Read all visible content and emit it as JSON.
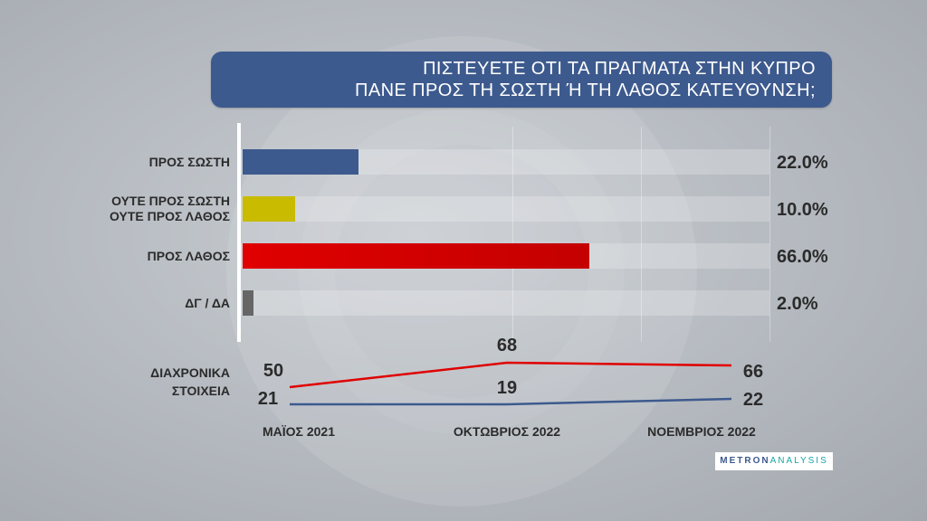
{
  "title": {
    "line1": "ΠΙΣΤΕΥΕΤΕ ΟΤΙ ΤΑ ΠΡΑΓΜΑΤΑ ΣΤΗΝ ΚΥΠΡΟ",
    "line2": "ΠΑΝΕ ΠΡΟΣ ΤΗ ΣΩΣΤΗ Ή ΤΗ ΛΑΘΟΣ ΚΑΤΕΥΘΥΝΣΗ;"
  },
  "colors": {
    "title_bg": "#3d5a8e",
    "right": "#3d5a8e",
    "neither": "#c8bb00",
    "wrong": "#e00000",
    "dk": "#666666"
  },
  "chart_data": [
    {
      "type": "bar",
      "orientation": "horizontal",
      "title": "ΠΙΣΤΕΥΕΤΕ ΟΤΙ ΤΑ ΠΡΑΓΜΑΤΑ ΣΤΗΝ ΚΥΠΡΟ ΠΑΝΕ ΠΡΟΣ ΤΗ ΣΩΣΤΗ Ή ΤΗ ΛΑΘΟΣ ΚΑΤΕΥΘΥΝΣΗ;",
      "categories": [
        {
          "line1": "ΠΡΟΣ ΣΩΣΤΗ",
          "line2": ""
        },
        {
          "line1": "ΟΥΤΕ ΠΡΟΣ ΣΩΣΤΗ",
          "line2": "ΟΥΤΕ ΠΡΟΣ ΛΑΘΟΣ"
        },
        {
          "line1": "ΠΡΟΣ ΛΑΘΟΣ",
          "line2": ""
        },
        {
          "line1": "ΔΓ / ΔΑ",
          "line2": ""
        }
      ],
      "values": [
        22.0,
        10.0,
        66.0,
        2.0
      ],
      "value_labels": [
        "22.0%",
        "10.0%",
        "66.0%",
        "2.0%"
      ],
      "xlim": [
        0,
        100
      ]
    },
    {
      "type": "line",
      "title": "ΔΙΑΧΡΟΝΙΚΑ ΣΤΟΙΧΕΙΑ",
      "title_line1": "ΔΙΑΧΡΟΝΙΚΑ",
      "title_line2": "ΣΤΟΙΧΕΙΑ",
      "x": [
        "ΜΑΪΟΣ 2021",
        "ΟΚΤΩΒΡΙΟΣ 2022",
        "ΝΟΕΜΒΡΙΟΣ 2022"
      ],
      "series": [
        {
          "color": "#e00000",
          "values": [
            50,
            68,
            66
          ]
        },
        {
          "color": "#3d5a8e",
          "values": [
            21,
            19,
            22
          ]
        }
      ]
    }
  ],
  "logo": {
    "part1": "METRON",
    "part2": "ANALYSIS"
  }
}
